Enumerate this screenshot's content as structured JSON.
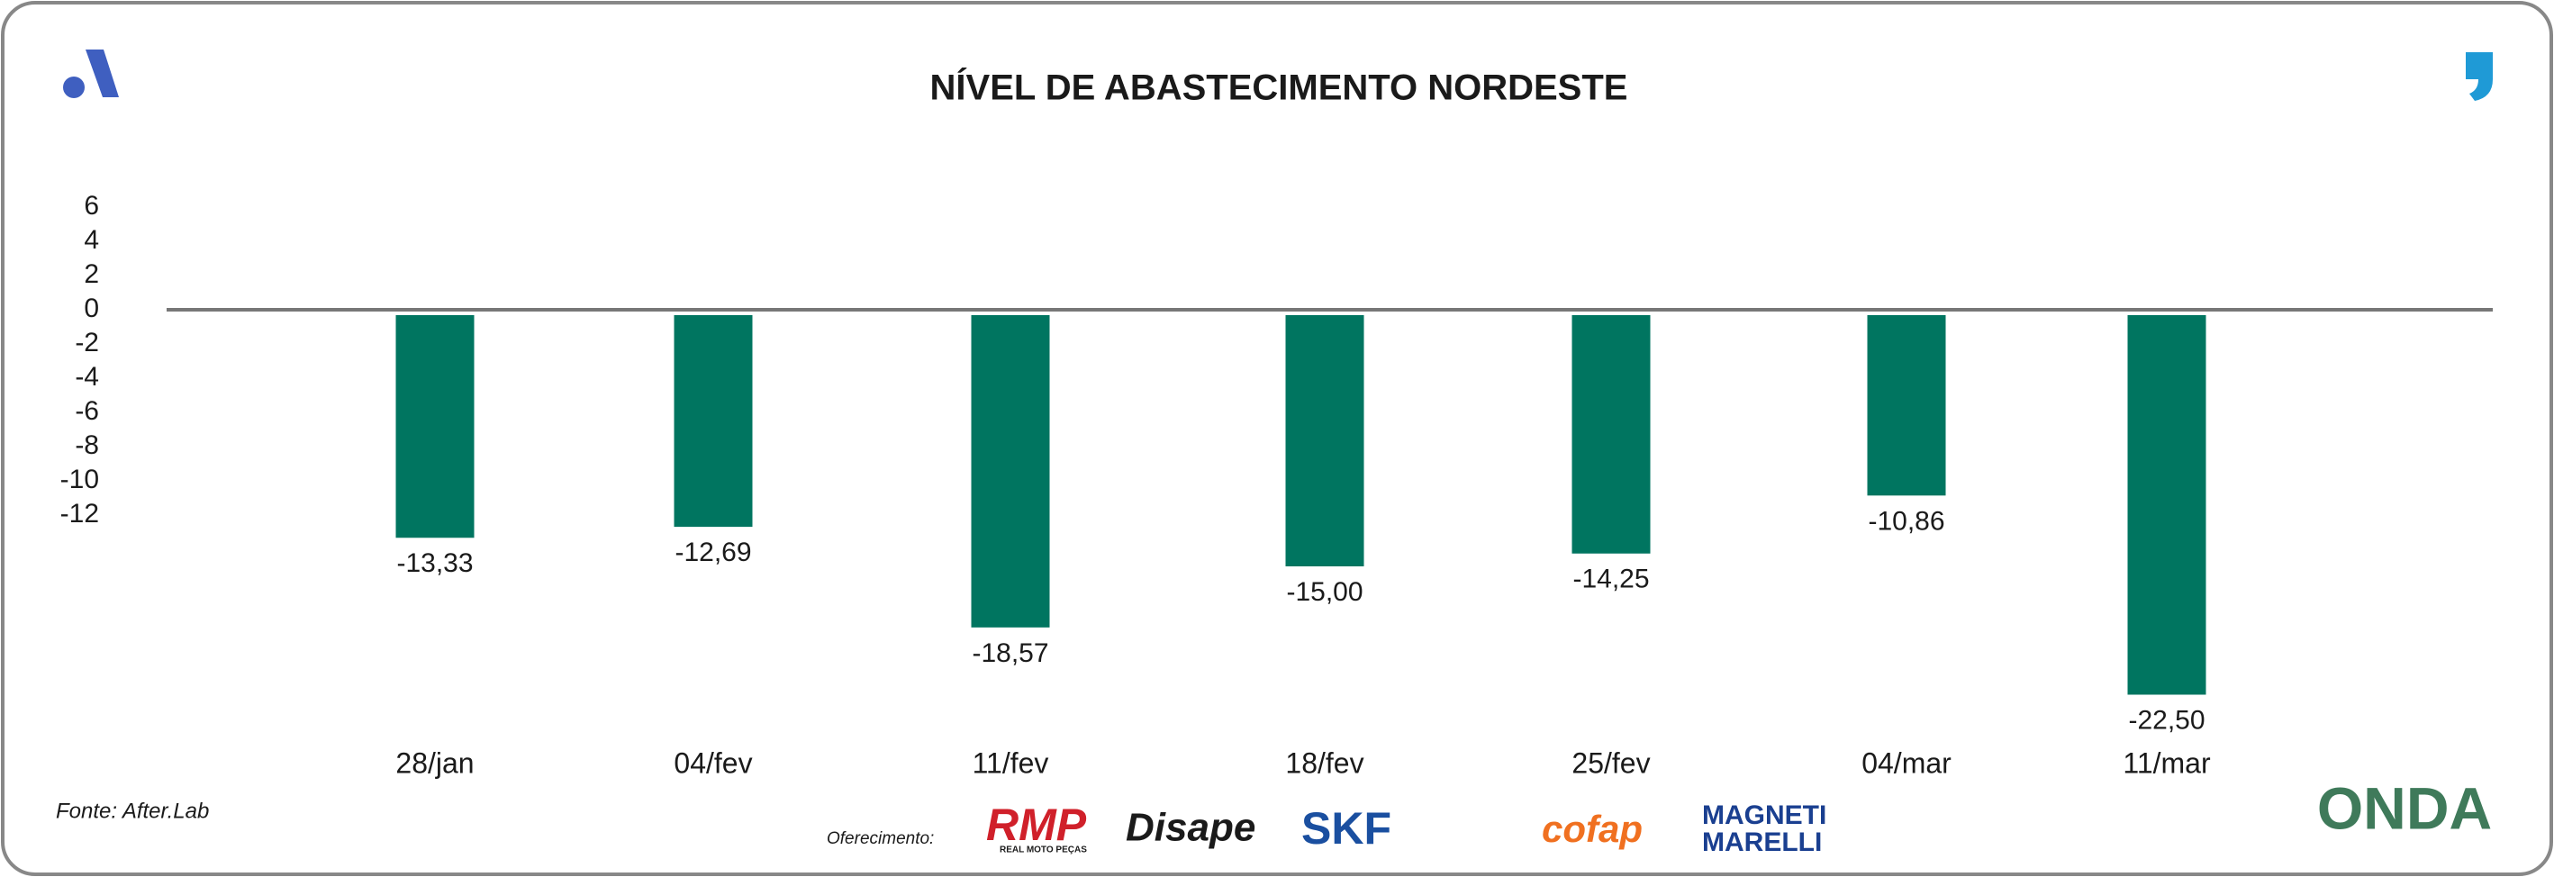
{
  "chart_data": {
    "type": "bar",
    "title": "NÍVEL DE ABASTECIMENTO NORDESTE",
    "categories": [
      "28/jan",
      "04/fev",
      "11/fev",
      "18/fev",
      "25/fev",
      "04/mar",
      "11/mar"
    ],
    "values": [
      -13.33,
      -12.69,
      -18.57,
      -15.0,
      -14.25,
      -10.86,
      -22.5
    ],
    "value_labels": [
      "-13,33",
      "-12,69",
      "-18,57",
      "-15,00",
      "-14,25",
      "-10,86",
      "-22,50"
    ],
    "color": "#007560",
    "ylim": [
      -23,
      7
    ],
    "yticks": [
      6,
      4,
      2,
      0,
      -2,
      -4,
      -6,
      -8,
      -10,
      -12
    ],
    "grid": false
  },
  "footer": {
    "source": "Fonte: After.Lab",
    "sponsor_label": "Oferecimento:",
    "sponsors": [
      "RMP",
      "REAL MOTO PEÇAS",
      "Disape",
      "SKF",
      "cofap",
      "MAGNETI",
      "MARELLI"
    ],
    "brand": "ONDA"
  }
}
